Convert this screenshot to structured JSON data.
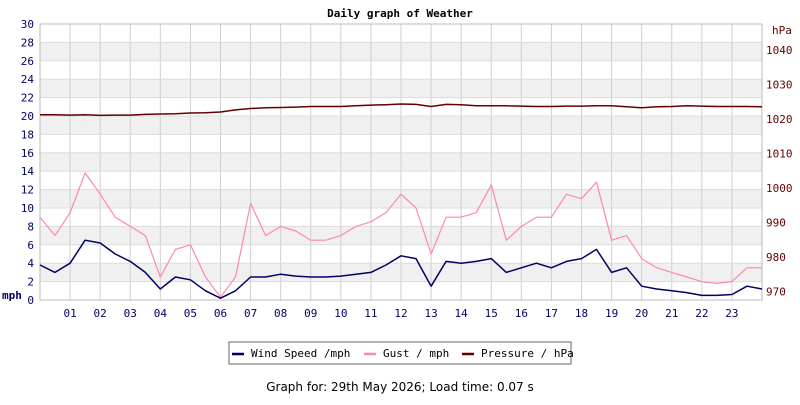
{
  "chart_data": {
    "type": "line",
    "title": "Daily graph of Weather",
    "left_axis": {
      "unit_label": "mph",
      "ylim": [
        0,
        30
      ],
      "ticks": [
        0,
        2,
        4,
        6,
        8,
        10,
        12,
        14,
        16,
        18,
        20,
        22,
        24,
        26,
        28,
        30
      ]
    },
    "right_axis": {
      "unit_label": "hPa",
      "ylim": [
        967.5,
        1047.5
      ],
      "ticks": [
        970,
        980,
        990,
        1000,
        1010,
        1020,
        1030,
        1040
      ]
    },
    "x_axis": {
      "unit": "hour",
      "xlim": [
        0,
        24
      ],
      "tick_labels": [
        "01",
        "02",
        "03",
        "04",
        "05",
        "06",
        "07",
        "08",
        "09",
        "10",
        "11",
        "12",
        "13",
        "14",
        "15",
        "16",
        "17",
        "18",
        "19",
        "20",
        "21",
        "22",
        "23"
      ]
    },
    "grid": true,
    "legend_position": "bottom-center",
    "series": [
      {
        "name": "Wind Speed /mph",
        "color": "#000066",
        "axis": "left",
        "x": [
          0,
          0.5,
          1,
          1.5,
          2,
          2.5,
          3,
          3.5,
          4,
          4.5,
          5,
          5.5,
          6,
          6.5,
          7,
          7.5,
          8,
          8.5,
          9,
          9.5,
          10,
          10.5,
          11,
          11.5,
          12,
          12.5,
          13,
          13.5,
          14,
          14.5,
          15,
          15.5,
          16,
          16.5,
          17,
          17.5,
          18,
          18.5,
          19,
          19.5,
          20,
          20.5,
          21,
          21.5,
          22,
          22.5,
          23,
          23.5,
          24
        ],
        "values": [
          3.8,
          3.0,
          4.0,
          6.5,
          6.2,
          5.0,
          4.2,
          3.0,
          1.2,
          2.5,
          2.2,
          1.0,
          0.2,
          1.0,
          2.5,
          2.5,
          2.8,
          2.6,
          2.5,
          2.5,
          2.6,
          2.8,
          3.0,
          3.8,
          4.8,
          4.5,
          1.5,
          4.2,
          4.0,
          4.2,
          4.5,
          3.0,
          3.5,
          4.0,
          3.5,
          4.2,
          4.5,
          5.5,
          3.0,
          3.5,
          1.5,
          1.2,
          1.0,
          0.8,
          0.5,
          0.5,
          0.6,
          1.5,
          1.2
        ]
      },
      {
        "name": "Gust / mph",
        "color": "#ff88aa",
        "axis": "left",
        "x": [
          0,
          0.5,
          1,
          1.5,
          2,
          2.5,
          3,
          3.5,
          4,
          4.5,
          5,
          5.5,
          6,
          6.5,
          7,
          7.5,
          8,
          8.5,
          9,
          9.5,
          10,
          10.5,
          11,
          11.5,
          12,
          12.5,
          13,
          13.5,
          14,
          14.5,
          15,
          15.5,
          16,
          16.5,
          17,
          17.5,
          18,
          18.5,
          19,
          19.5,
          20,
          20.5,
          21,
          21.5,
          22,
          22.5,
          23,
          23.5,
          24
        ],
        "values": [
          9.0,
          7.0,
          9.5,
          13.8,
          11.5,
          9.0,
          8.0,
          7.0,
          2.5,
          5.5,
          6.0,
          2.5,
          0.3,
          2.5,
          10.5,
          7.0,
          8.0,
          7.5,
          6.5,
          6.5,
          7.0,
          8.0,
          8.5,
          9.5,
          11.5,
          10.0,
          5.0,
          9.0,
          9.0,
          9.5,
          12.5,
          6.5,
          8.0,
          9.0,
          9.0,
          11.5,
          11.0,
          12.8,
          6.5,
          7.0,
          4.5,
          3.5,
          3.0,
          2.5,
          2.0,
          1.8,
          2.0,
          3.5,
          3.5
        ]
      },
      {
        "name": "Pressure / hPa",
        "color": "#660000",
        "axis": "right",
        "x": [
          0,
          0.5,
          1,
          1.5,
          2,
          2.5,
          3,
          3.5,
          4,
          4.5,
          5,
          5.5,
          6,
          6.5,
          7,
          7.5,
          8,
          8.5,
          9,
          9.5,
          10,
          10.5,
          11,
          11.5,
          12,
          12.5,
          13,
          13.5,
          14,
          14.5,
          15,
          15.5,
          16,
          16.5,
          17,
          17.5,
          18,
          18.5,
          19,
          19.5,
          20,
          20.5,
          21,
          21.5,
          22,
          22.5,
          23,
          23.5,
          24
        ],
        "values": [
          1021.2,
          1021.2,
          1021.1,
          1021.2,
          1021.0,
          1021.1,
          1021.1,
          1021.3,
          1021.4,
          1021.5,
          1021.7,
          1021.8,
          1022.0,
          1022.6,
          1023.0,
          1023.2,
          1023.3,
          1023.4,
          1023.6,
          1023.6,
          1023.6,
          1023.8,
          1024.0,
          1024.1,
          1024.3,
          1024.2,
          1023.6,
          1024.2,
          1024.1,
          1023.8,
          1023.8,
          1023.8,
          1023.7,
          1023.6,
          1023.6,
          1023.7,
          1023.7,
          1023.8,
          1023.8,
          1023.5,
          1023.2,
          1023.5,
          1023.6,
          1023.8,
          1023.7,
          1023.6,
          1023.6,
          1023.6,
          1023.5
        ]
      }
    ]
  },
  "footer": {
    "text": "Graph for: 29th May 2026; Load time: 0.07 s"
  }
}
